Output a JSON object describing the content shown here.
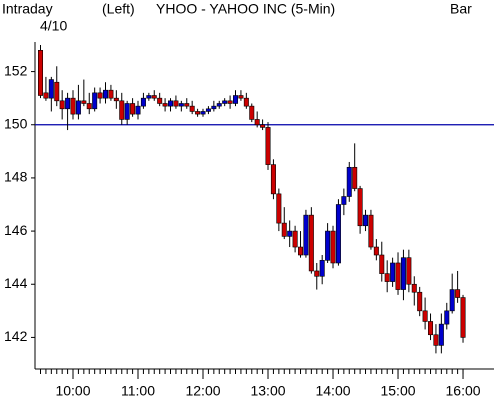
{
  "chart_data": {
    "type": "candlestick",
    "header": [
      "Intraday",
      "(Left)",
      "YHOO - YAHOO INC  (5-Min)",
      "Bar"
    ],
    "date": "4/10",
    "categories": [
      "9:30",
      "9:35",
      "9:40",
      "9:45",
      "9:50",
      "9:55",
      "10:00",
      "10:05",
      "10:10",
      "10:15",
      "10:20",
      "10:25",
      "10:30",
      "10:35",
      "10:40",
      "10:45",
      "10:50",
      "10:55",
      "11:00",
      "11:05",
      "11:10",
      "11:15",
      "11:20",
      "11:25",
      "11:30",
      "11:35",
      "11:40",
      "11:45",
      "11:50",
      "11:55",
      "12:00",
      "12:05",
      "12:10",
      "12:15",
      "12:20",
      "12:25",
      "12:30",
      "12:35",
      "12:40",
      "12:45",
      "12:50",
      "12:55",
      "13:00",
      "13:05",
      "13:10",
      "13:15",
      "13:20",
      "13:25",
      "13:30",
      "13:35",
      "13:40",
      "13:45",
      "13:50",
      "13:55",
      "14:00",
      "14:05",
      "14:10",
      "14:15",
      "14:20",
      "14:25",
      "14:30",
      "14:35",
      "14:40",
      "14:45",
      "14:50",
      "14:55",
      "15:00",
      "15:05",
      "15:10",
      "15:15",
      "15:20",
      "15:25",
      "15:30",
      "15:35",
      "15:40",
      "15:45",
      "15:50",
      "15:55",
      "16:00"
    ],
    "open": [
      152.8,
      151.2,
      151.0,
      151.6,
      150.9,
      150.6,
      151.0,
      150.4,
      150.9,
      150.8,
      150.6,
      151.2,
      151.0,
      151.3,
      151.0,
      150.9,
      150.2,
      150.8,
      150.4,
      150.7,
      151.0,
      151.1,
      151.0,
      150.8,
      150.7,
      150.9,
      150.7,
      150.8,
      150.7,
      150.5,
      150.4,
      150.5,
      150.6,
      150.7,
      150.8,
      150.9,
      150.8,
      151.1,
      151.0,
      150.7,
      150.2,
      150.0,
      149.9,
      148.5,
      147.4,
      146.3,
      145.8,
      146.0,
      145.4,
      145.1,
      146.6,
      144.5,
      144.3,
      144.9,
      146.0,
      144.8,
      147.0,
      147.3,
      148.4,
      147.6,
      146.2,
      146.6,
      145.4,
      145.1,
      144.4,
      144.1,
      144.8,
      143.8,
      145.0,
      144.0,
      143.7,
      143.0,
      142.6,
      142.1,
      141.7,
      142.5,
      143.0,
      143.8,
      143.5
    ],
    "high": [
      153.0,
      151.8,
      151.8,
      152.2,
      151.3,
      151.2,
      151.3,
      151.5,
      151.7,
      151.2,
      151.4,
      151.4,
      151.6,
      151.5,
      151.3,
      151.2,
      150.9,
      151.0,
      150.9,
      151.2,
      151.2,
      151.3,
      151.2,
      151.0,
      151.0,
      151.1,
      150.9,
      151.0,
      150.9,
      150.6,
      150.6,
      150.7,
      150.9,
      150.9,
      151.0,
      151.1,
      151.3,
      151.3,
      151.2,
      150.8,
      150.5,
      150.2,
      150.1,
      148.7,
      147.6,
      146.9,
      146.4,
      146.2,
      146.0,
      146.8,
      146.9,
      144.8,
      145.1,
      146.3,
      146.2,
      147.2,
      147.6,
      148.6,
      149.3,
      147.7,
      146.8,
      146.8,
      145.7,
      145.6,
      144.9,
      145.0,
      145.2,
      145.3,
      145.3,
      144.3,
      143.9,
      143.5,
      142.9,
      142.5,
      142.9,
      143.3,
      144.4,
      144.5,
      143.6
    ],
    "low": [
      151.0,
      150.9,
      150.5,
      150.7,
      150.2,
      149.8,
      150.2,
      150.2,
      150.7,
      150.4,
      150.5,
      150.8,
      150.8,
      150.9,
      150.6,
      150.0,
      150.0,
      150.3,
      150.2,
      150.6,
      150.9,
      150.9,
      150.7,
      150.5,
      150.5,
      150.6,
      150.5,
      150.6,
      150.4,
      150.3,
      150.3,
      150.4,
      150.5,
      150.6,
      150.7,
      150.6,
      150.7,
      150.9,
      150.6,
      150.1,
      149.9,
      149.8,
      148.3,
      147.2,
      146.0,
      145.7,
      145.4,
      145.2,
      145.0,
      145.0,
      144.4,
      143.8,
      144.0,
      144.8,
      144.6,
      144.7,
      146.6,
      147.1,
      147.5,
      145.9,
      146.0,
      145.3,
      144.9,
      144.1,
      143.7,
      143.9,
      143.6,
      143.4,
      143.7,
      143.2,
      142.8,
      142.3,
      141.9,
      141.4,
      141.4,
      142.3,
      142.9,
      143.3,
      141.8
    ],
    "close": [
      151.1,
      151.0,
      151.7,
      150.9,
      150.6,
      151.0,
      150.4,
      150.9,
      150.8,
      150.6,
      151.2,
      151.0,
      151.3,
      151.0,
      150.9,
      150.2,
      150.8,
      150.4,
      150.7,
      151.0,
      151.1,
      151.0,
      150.8,
      150.7,
      150.9,
      150.7,
      150.8,
      150.7,
      150.5,
      150.4,
      150.5,
      150.6,
      150.7,
      150.8,
      150.9,
      150.8,
      151.1,
      151.0,
      150.7,
      150.2,
      150.0,
      149.9,
      148.5,
      147.4,
      146.3,
      145.8,
      146.0,
      145.4,
      145.1,
      146.6,
      144.5,
      144.3,
      144.9,
      146.0,
      144.8,
      147.0,
      147.3,
      148.4,
      147.6,
      146.2,
      146.6,
      145.4,
      145.1,
      144.4,
      144.1,
      144.8,
      143.8,
      145.0,
      144.0,
      143.7,
      143.0,
      142.6,
      142.1,
      141.7,
      142.5,
      143.0,
      143.8,
      143.5,
      142.0
    ],
    "up_color": "#0000cc",
    "down_color": "#cc0000",
    "reference_line": 150,
    "reference_color": "#0000aa",
    "ylim": [
      141,
      153
    ],
    "yticks": [
      142,
      144,
      146,
      148,
      150,
      152
    ],
    "xticks": [
      "10:00",
      "11:00",
      "12:00",
      "13:00",
      "14:00",
      "15:00",
      "16:00"
    ]
  }
}
